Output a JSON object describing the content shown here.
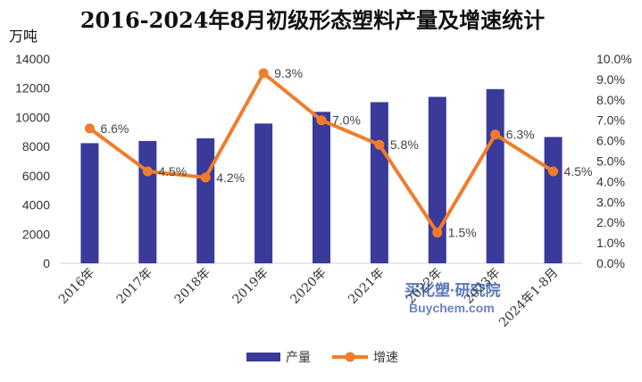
{
  "chart_data": {
    "type": "bar+line",
    "title": "2016-2024年8月初级形态塑料产量及增速统计",
    "y_left_unit": "万吨",
    "categories": [
      "2016年",
      "2017年",
      "2018年",
      "2019年",
      "2020年",
      "2021年",
      "2022年",
      "2023年",
      "2024年1-8月"
    ],
    "series": [
      {
        "name": "产量",
        "type": "bar",
        "axis": "left",
        "color": "#3A3A9A",
        "values": [
          8227,
          8378,
          8558,
          9574,
          10374,
          11039,
          11400,
          11930,
          8650
        ]
      },
      {
        "name": "增速",
        "type": "line",
        "axis": "right",
        "color": "#F07D2B",
        "values": [
          6.6,
          4.5,
          4.2,
          9.3,
          7.0,
          5.8,
          1.5,
          6.3,
          4.5
        ],
        "labels": [
          "6.6%",
          "4.5%",
          "4.2%",
          "9.3%",
          "7.0%",
          "5.8%",
          "1.5%",
          "6.3%",
          "4.5%"
        ]
      }
    ],
    "y_left": {
      "min": 0,
      "max": 14000,
      "ticks": [
        "0",
        "2000",
        "4000",
        "6000",
        "8000",
        "10000",
        "12000",
        "14000"
      ]
    },
    "y_right": {
      "min": 0,
      "max": 10,
      "ticks": [
        "0.0%",
        "1.0%",
        "2.0%",
        "3.0%",
        "4.0%",
        "5.0%",
        "6.0%",
        "7.0%",
        "8.0%",
        "9.0%",
        "10.0%"
      ]
    },
    "grid": false,
    "legend_position": "bottom"
  },
  "watermark": {
    "line1": "买化塑·研究院",
    "line2": "Buychem.com"
  }
}
